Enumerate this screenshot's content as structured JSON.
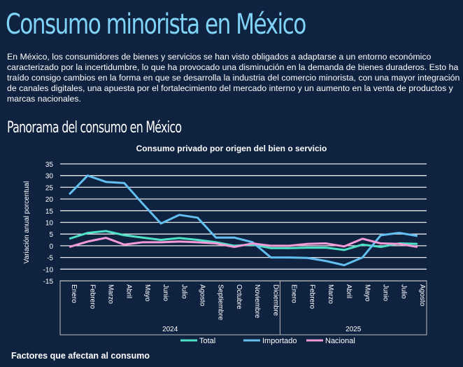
{
  "title": "Consumo minorista en México",
  "intro": "En México, los consumidores de bienes y servicios se han visto obligados a adaptarse a un entorno económico caracterizado por la incertidumbre, lo que ha provocado una disminución en la demanda de bienes duraderos. Esto ha traído consigo cambios en la forma en que se desarrolla la industria del comercio minorista, con una mayor integración de canales digitales, una apuesta por el fortalecimiento del mercado interno y un aumento en la venta de productos y marcas nacionales.",
  "subtitle": "Panorama del consumo en México",
  "footer_heading": "Factores que afectan al consumo",
  "chart_data": {
    "type": "line",
    "title": "Consumo privado por origen del bien o servicio",
    "ylabel": "Variación anual porcentual",
    "xlabel": "",
    "ylim": [
      -15,
      35
    ],
    "yticks": [
      35,
      30,
      25,
      20,
      15,
      10,
      5,
      0,
      -5,
      -10,
      -15
    ],
    "grid": true,
    "legend": "bottom",
    "categories": [
      "Enero",
      "Febrero",
      "Marzo",
      "Abril",
      "Mayo",
      "Junio",
      "Julio",
      "Agosto",
      "Septiembre",
      "Octubre",
      "Noviembre",
      "Diciembre",
      "Enero",
      "Febrero",
      "Marzo",
      "Abril",
      "Mayo",
      "Junio",
      "Julio",
      "Agosto"
    ],
    "groups": [
      {
        "label": "2024",
        "count": 12
      },
      {
        "label": "2025",
        "count": 8
      }
    ],
    "series": [
      {
        "name": "Total",
        "color": "#4fe0c8",
        "values": [
          3,
          5.5,
          6.3,
          4.5,
          3.5,
          2.5,
          3.3,
          2.5,
          1.5,
          0,
          0.5,
          -1,
          -1,
          -0.8,
          -0.8,
          -1.8,
          0.5,
          -0.5,
          1,
          0.8
        ]
      },
      {
        "name": "Importado",
        "color": "#62bff0",
        "values": [
          22,
          30,
          27.3,
          26.8,
          18,
          9.5,
          13.2,
          12,
          3.5,
          3.5,
          1.5,
          -5,
          -5,
          -5.2,
          -6.5,
          -8.3,
          -5,
          4.5,
          5.5,
          4.2
        ]
      },
      {
        "name": "Nacional",
        "color": "#f29bd6",
        "values": [
          -0.5,
          1.8,
          3.4,
          0.5,
          1.5,
          1.5,
          1.8,
          1.5,
          1,
          -0.5,
          1,
          0,
          0,
          0.8,
          1,
          -0.3,
          3,
          1,
          0.8,
          -0.5
        ]
      }
    ]
  }
}
